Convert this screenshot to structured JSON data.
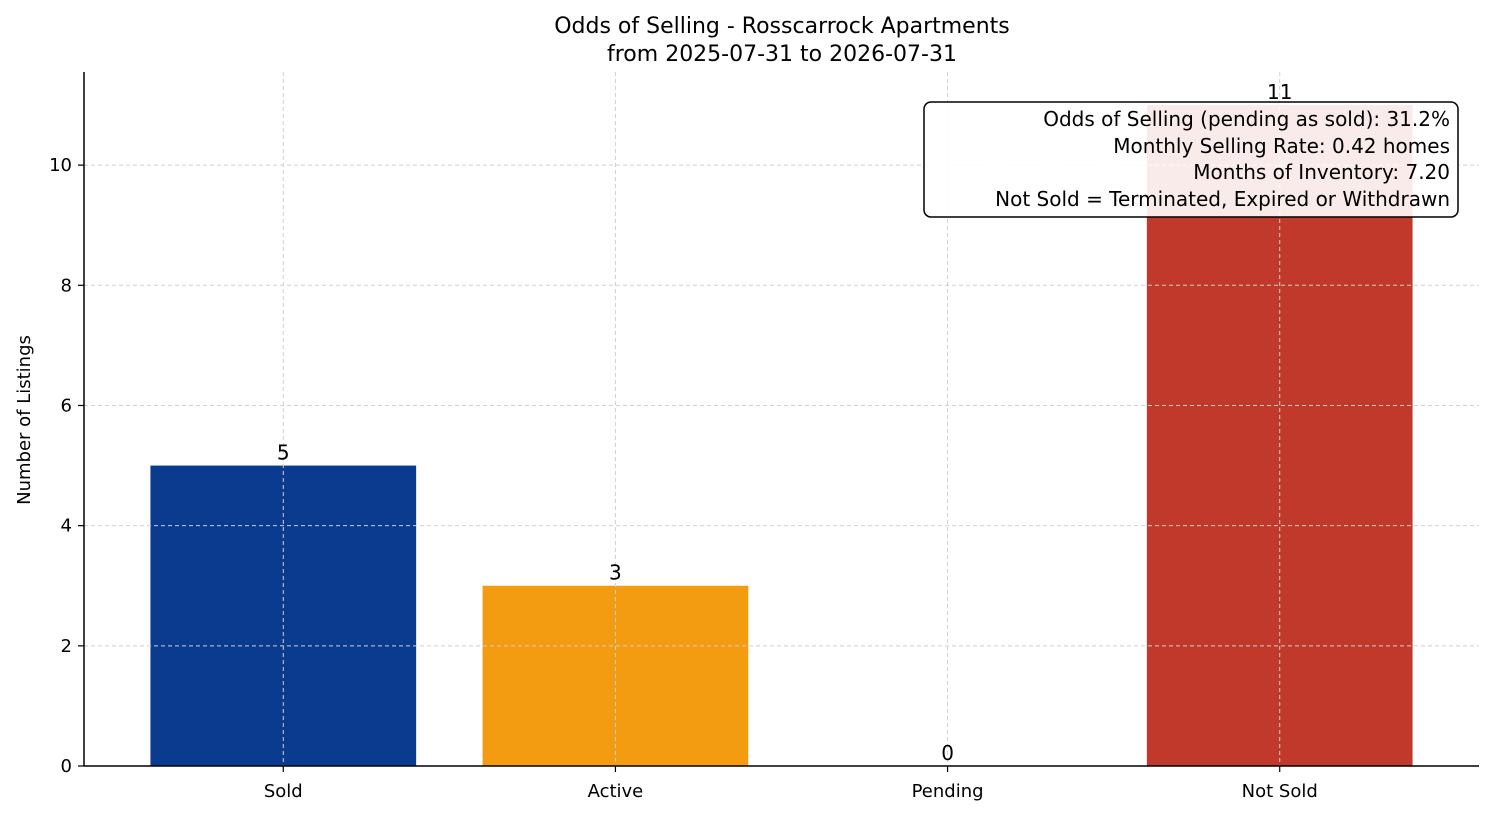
{
  "chart_data": {
    "type": "bar",
    "title": "Odds of Selling - Rosscarrock Apartments",
    "subtitle": "from 2025-07-31 to 2026-07-31",
    "xlabel": "",
    "ylabel": "Number of Listings",
    "categories": [
      "Sold",
      "Active",
      "Pending",
      "Not Sold"
    ],
    "values": [
      5,
      3,
      0,
      11
    ],
    "colors": [
      "#0b3b8f",
      "#f39c12",
      "#27ae60",
      "#c0392b"
    ],
    "ylim": [
      0,
      11.55
    ],
    "yticks": [
      0,
      2,
      4,
      6,
      8,
      10
    ],
    "grid": true,
    "annotations": [
      "Odds of Selling (pending as sold): 31.2%",
      "Monthly Selling Rate: 0.42 homes",
      "Months of Inventory: 7.20",
      "Not Sold = Terminated, Expired or Withdrawn"
    ],
    "annotation_placement": "top-right"
  }
}
